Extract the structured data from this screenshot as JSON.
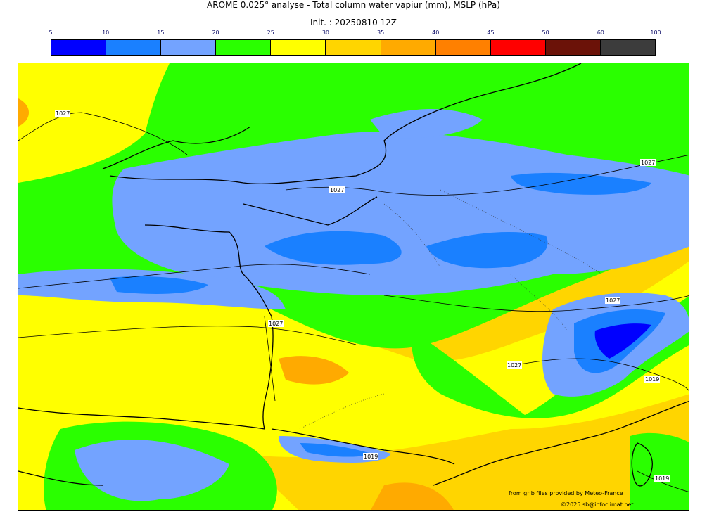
{
  "header": {
    "title": "AROME 0.025° analyse - Total column water vapiur (mm), MSLP (hPa)",
    "init": "Init. : 20250810 12Z"
  },
  "colorbar": {
    "ticks": [
      "5",
      "10",
      "15",
      "20",
      "25",
      "30",
      "35",
      "40",
      "45",
      "50",
      "60",
      "100"
    ],
    "colors": [
      "#0000ff",
      "#1a80ff",
      "#73a3ff",
      "#2aff00",
      "#ffff00",
      "#ffd500",
      "#ffaa00",
      "#ff8000",
      "#ff0000",
      "#6b1208",
      "#3c3c3c"
    ]
  },
  "map": {
    "isobar_labels": [
      "1027",
      "1027",
      "1027",
      "1027",
      "1027",
      "1027",
      "1019",
      "1019",
      "1019"
    ]
  },
  "credits": {
    "source": "from grib files provided by Meteo-France",
    "copyright": "©2025 sb@infoclimat.net"
  }
}
